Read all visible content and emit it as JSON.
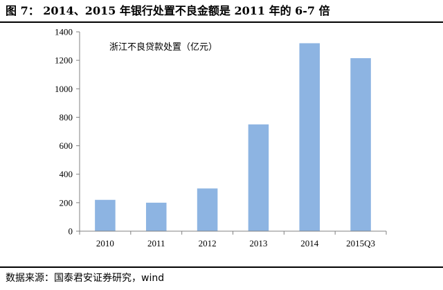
{
  "header": {
    "figure_title": "图 7： 2014、2015 年银行处置不良金额是 2011 年的 6-7 倍"
  },
  "footer": {
    "source": "数据来源：国泰君安证券研究，wind"
  },
  "chart_data": {
    "type": "bar",
    "title": "",
    "annotation": "浙江不良贷款处置（亿元）",
    "categories": [
      "2010",
      "2011",
      "2012",
      "2013",
      "2014",
      "2015Q3"
    ],
    "values": [
      220,
      200,
      300,
      750,
      1320,
      1215
    ],
    "ylim": [
      0,
      1400
    ],
    "yticks": [
      0,
      200,
      400,
      600,
      800,
      1000,
      1200,
      1400
    ],
    "xlabel": "",
    "ylabel": "",
    "grid": false,
    "legend": "none",
    "bar_color": "#8DB4E2",
    "axis_color": "#808080"
  }
}
